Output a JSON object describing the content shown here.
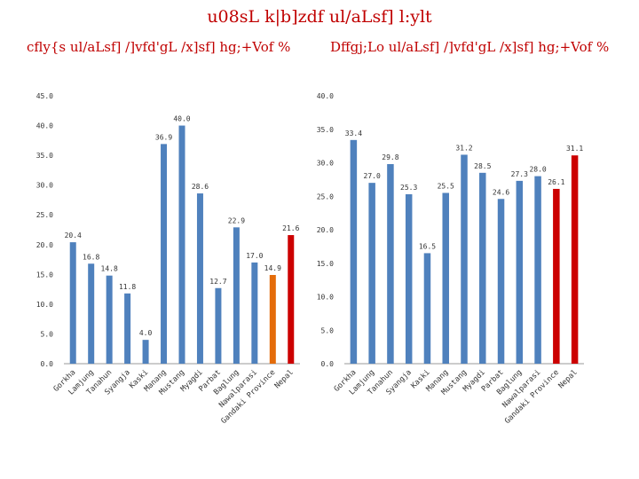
{
  "title": "u08sL k|b]zdf ul/aLsf] l:ylt",
  "chart_data": [
    {
      "type": "bar",
      "title": "cfly{s ul/aLsf] /]vfd'gL /x]sf] hg;+Vof %",
      "categories": [
        "Gorkha",
        "Lamjung",
        "Tanahun",
        "Syangja",
        "Kaski",
        "Manang",
        "Mustang",
        "Myagdi",
        "Parbat",
        "Baglung",
        "Nawalparasi",
        "Gandaki Province",
        "Nepal"
      ],
      "values": [
        20.4,
        16.8,
        14.8,
        11.8,
        4.0,
        36.9,
        40.0,
        28.6,
        12.7,
        22.9,
        17.0,
        14.9,
        21.6
      ],
      "data_labels": [
        "20.4",
        "16.8",
        "14.8",
        "11.8",
        "4.0",
        "36.9",
        "40.0",
        "28.6",
        "12.7",
        "22.9",
        "17.0",
        "14.9",
        "21.6"
      ],
      "colors": [
        "#4f81bd",
        "#4f81bd",
        "#4f81bd",
        "#4f81bd",
        "#4f81bd",
        "#4f81bd",
        "#4f81bd",
        "#4f81bd",
        "#4f81bd",
        "#4f81bd",
        "#4f81bd",
        "#e46c0a",
        "#cc0000"
      ],
      "ylim": [
        0,
        45
      ],
      "yticks": [
        "0.0",
        "5.0",
        "10.0",
        "15.0",
        "20.0",
        "25.0",
        "30.0",
        "35.0",
        "40.0",
        "45.0"
      ],
      "grid": false
    },
    {
      "type": "bar",
      "title": "Dffgj;Lo ul/aLsf] /]vfd'gL /x]sf] hg;+Vof %",
      "categories": [
        "Gorkha",
        "Lamjung",
        "Tanahun",
        "Syangja",
        "Kaski",
        "Manang",
        "Mustang",
        "Myagdi",
        "Parbat",
        "Baglung",
        "Nawalparasi",
        "Gandaki Province",
        "Nepal"
      ],
      "values": [
        33.4,
        27.0,
        29.8,
        25.3,
        16.5,
        25.5,
        31.2,
        28.5,
        24.6,
        27.3,
        28.0,
        26.1,
        31.1
      ],
      "data_labels": [
        "33.4",
        "27.0",
        "29.8",
        "25.3",
        "16.5",
        "25.5",
        "31.2",
        "28.5",
        "24.6",
        "27.3",
        "28.0",
        "26.1",
        "31.1"
      ],
      "colors": [
        "#4f81bd",
        "#4f81bd",
        "#4f81bd",
        "#4f81bd",
        "#4f81bd",
        "#4f81bd",
        "#4f81bd",
        "#4f81bd",
        "#4f81bd",
        "#4f81bd",
        "#4f81bd",
        "#cc0000",
        "#cc0000"
      ],
      "ylim": [
        0,
        40
      ],
      "yticks": [
        "0.0",
        "5.0",
        "10.0",
        "15.0",
        "20.0",
        "25.0",
        "30.0",
        "35.0",
        "40.0"
      ],
      "grid": false
    }
  ]
}
